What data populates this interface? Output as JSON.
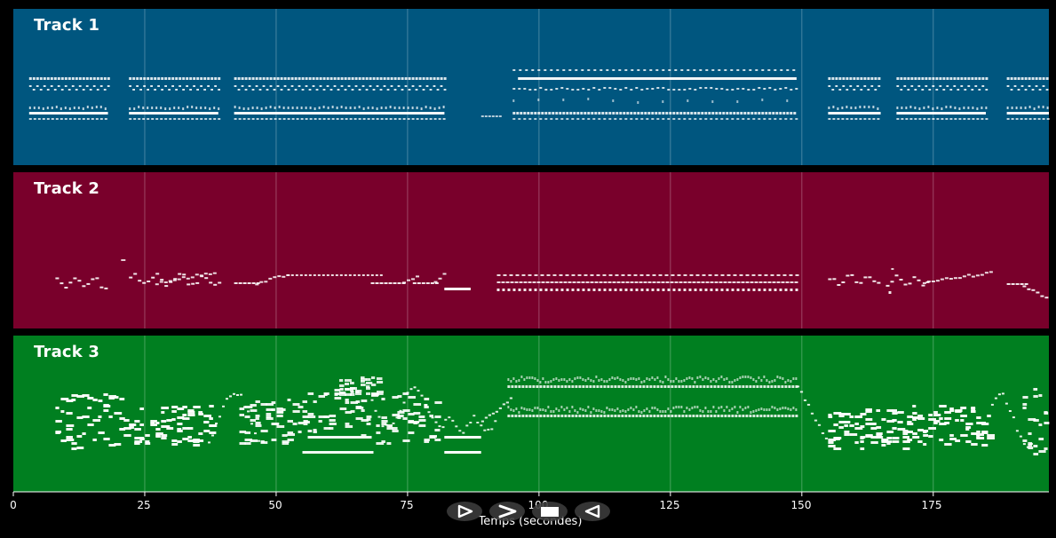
{
  "tracks": [
    {
      "name": "Track 1",
      "color": "#00567f"
    },
    {
      "name": "Track 2",
      "color": "#79002b"
    },
    {
      "name": "Track 3",
      "color": "#007f20"
    }
  ],
  "x_axis": {
    "label": "Temps (secondes)",
    "ticks": [
      "0",
      "25",
      "50",
      "75",
      "100",
      "125",
      "150",
      "175"
    ],
    "range": [
      0,
      197
    ]
  },
  "note_color": "#ffffff",
  "transport": {
    "buttons": [
      {
        "name": "play",
        "icon": "play-outline-icon"
      },
      {
        "name": "fast-forward",
        "icon": "chevron-right-icon"
      },
      {
        "name": "stop",
        "icon": "stop-square-icon"
      },
      {
        "name": "rewind",
        "icon": "rewind-triangle-icon"
      }
    ]
  }
}
